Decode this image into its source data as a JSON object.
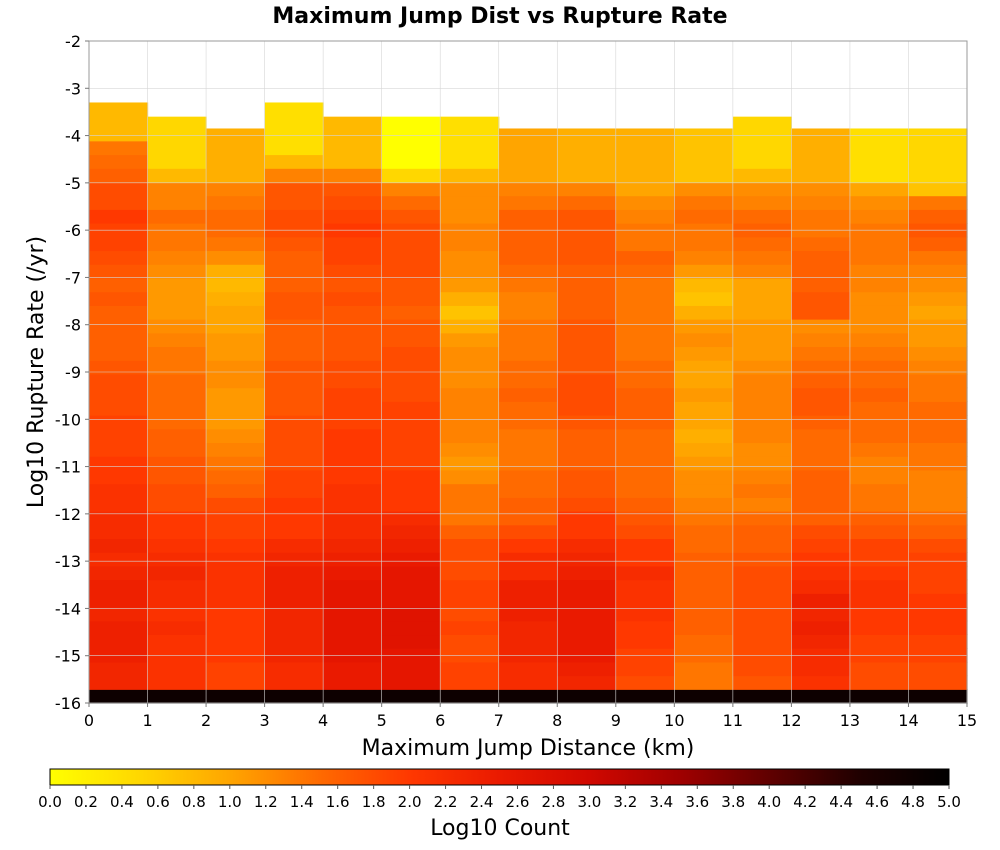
{
  "chart_data": {
    "type": "heatmap",
    "title": "Maximum Jump Dist vs Rupture Rate",
    "xlabel": "Maximum Jump Distance (km)",
    "ylabel": "Log10 Rupture Rate (/yr)",
    "colorbar_label": "Log10 Count",
    "xlim": [
      0,
      15
    ],
    "ylim": [
      -16,
      -2
    ],
    "x_bin_width": 1,
    "y_bin_width": 0.29,
    "y_bin_start": -16,
    "y_bin_count": 48,
    "x_ticks": [
      "0",
      "1",
      "2",
      "3",
      "4",
      "5",
      "6",
      "7",
      "8",
      "9",
      "10",
      "11",
      "12",
      "13",
      "14",
      "15"
    ],
    "y_ticks": [
      "-2",
      "-3",
      "-4",
      "-5",
      "-6",
      "-7",
      "-8",
      "-9",
      "-10",
      "-11",
      "-12",
      "-13",
      "-14",
      "-15",
      "-16"
    ],
    "colorbar_range": [
      0,
      5
    ],
    "colorbar_ticks": [
      "0.0",
      "0.2",
      "0.4",
      "0.6",
      "0.8",
      "1.0",
      "1.2",
      "1.4",
      "1.6",
      "1.8",
      "2.0",
      "2.2",
      "2.4",
      "2.6",
      "2.8",
      "3.0",
      "3.2",
      "3.4",
      "3.6",
      "3.8",
      "4.0",
      "4.2",
      "4.4",
      "4.6",
      "4.8",
      "5.0"
    ],
    "colormap": [
      "#ffff00",
      "#ffd700",
      "#ffa500",
      "#ff6a00",
      "#ff3800",
      "#ea1a00",
      "#d00800",
      "#a00000",
      "#600000",
      "#200000",
      "#000000"
    ],
    "grid": true,
    "columns": [
      {
        "x_range": [
          0,
          1
        ],
        "top": -3.3,
        "values": [
          4.8,
          2.3,
          2.3,
          2.4,
          2.4,
          2.4,
          2.3,
          2.4,
          2.4,
          2.3,
          2.2,
          2.3,
          2.2,
          2.2,
          2.1,
          2.1,
          2.0,
          2.0,
          1.9,
          1.9,
          1.9,
          1.8,
          1.8,
          1.8,
          1.7,
          1.6,
          1.6,
          1.6,
          1.6,
          1.7,
          1.6,
          1.7,
          1.8,
          1.9,
          1.9,
          2.0,
          1.8,
          1.8,
          1.6,
          1.5,
          1.4,
          0.8
        ]
      },
      {
        "x_range": [
          1,
          2
        ],
        "top": -3.6,
        "values": [
          4.8,
          2.1,
          2.1,
          2.1,
          2.1,
          2.2,
          2.1,
          2.2,
          2.2,
          2.3,
          2.2,
          2.1,
          2.0,
          2.0,
          1.8,
          1.8,
          1.7,
          1.7,
          1.6,
          1.6,
          1.5,
          1.5,
          1.5,
          1.5,
          1.4,
          1.4,
          1.3,
          1.2,
          1.1,
          1.1,
          1.1,
          1.2,
          1.3,
          1.4,
          1.4,
          1.5,
          1.3,
          1.3,
          0.8,
          0.5
        ]
      },
      {
        "x_range": [
          2,
          3
        ],
        "top": -3.85,
        "values": [
          4.8,
          1.9,
          1.9,
          2.0,
          2.0,
          2.0,
          2.0,
          2.1,
          2.1,
          2.1,
          2.1,
          2.0,
          1.9,
          1.9,
          1.8,
          1.6,
          1.5,
          1.4,
          1.3,
          1.2,
          1.1,
          1.1,
          1.1,
          1.2,
          1.2,
          1.1,
          1.1,
          1.0,
          1.0,
          0.9,
          0.8,
          0.9,
          1.2,
          1.4,
          1.5,
          1.5,
          1.4,
          1.3,
          0.9
        ]
      },
      {
        "x_range": [
          3,
          4
        ],
        "top": -3.3,
        "values": [
          4.8,
          2.2,
          2.2,
          2.3,
          2.3,
          2.3,
          2.3,
          2.4,
          2.4,
          2.4,
          2.3,
          2.2,
          2.0,
          2.0,
          2.0,
          1.9,
          1.9,
          1.8,
          1.8,
          1.8,
          1.8,
          1.7,
          1.7,
          1.7,
          1.7,
          1.6,
          1.6,
          1.6,
          1.7,
          1.7,
          1.6,
          1.6,
          1.6,
          1.7,
          1.8,
          1.8,
          1.7,
          1.7,
          1.3,
          0.8,
          0.4
        ]
      },
      {
        "x_range": [
          4,
          5
        ],
        "top": -3.6,
        "values": [
          4.8,
          2.5,
          2.5,
          2.6,
          2.6,
          2.6,
          2.6,
          2.6,
          2.6,
          2.5,
          2.4,
          2.3,
          2.2,
          2.2,
          2.1,
          2.1,
          2.0,
          2.0,
          2.0,
          2.0,
          1.9,
          1.9,
          1.9,
          1.8,
          1.8,
          1.7,
          1.7,
          1.7,
          1.7,
          1.8,
          1.7,
          1.8,
          1.9,
          1.9,
          2.0,
          1.9,
          1.8,
          1.7,
          1.3,
          0.8
        ]
      },
      {
        "x_range": [
          5,
          6
        ],
        "top": -3.6,
        "values": [
          4.8,
          2.6,
          2.6,
          2.6,
          2.7,
          2.7,
          2.7,
          2.6,
          2.6,
          2.6,
          2.5,
          2.4,
          2.3,
          2.2,
          2.0,
          2.0,
          2.0,
          1.9,
          1.9,
          1.9,
          1.9,
          1.9,
          1.8,
          1.8,
          1.8,
          1.8,
          1.7,
          1.7,
          1.6,
          1.7,
          1.7,
          1.8,
          1.8,
          1.8,
          1.8,
          1.7,
          1.5,
          1.3,
          0.5,
          0.0
        ]
      },
      {
        "x_range": [
          6,
          7
        ],
        "top": -3.6,
        "values": [
          4.8,
          1.9,
          1.9,
          1.8,
          1.8,
          1.9,
          1.8,
          1.9,
          1.9,
          1.8,
          1.8,
          1.8,
          1.6,
          1.4,
          1.4,
          1.4,
          1.2,
          1.1,
          1.2,
          1.3,
          1.3,
          1.3,
          1.3,
          1.2,
          1.2,
          1.2,
          1.1,
          0.9,
          0.7,
          0.9,
          1.1,
          1.2,
          1.2,
          1.3,
          1.3,
          1.2,
          1.2,
          1.2,
          0.8,
          0.4
        ]
      },
      {
        "x_range": [
          7,
          8
        ],
        "top": -3.85,
        "values": [
          4.8,
          2.2,
          2.2,
          2.3,
          2.3,
          2.3,
          2.4,
          2.4,
          2.4,
          2.2,
          2.2,
          2.0,
          1.8,
          1.6,
          1.6,
          1.5,
          1.5,
          1.4,
          1.4,
          1.4,
          1.5,
          1.5,
          1.6,
          1.5,
          1.5,
          1.4,
          1.4,
          1.4,
          1.3,
          1.3,
          1.4,
          1.5,
          1.6,
          1.6,
          1.6,
          1.6,
          1.4,
          1.3,
          1.0
        ]
      },
      {
        "x_range": [
          8,
          9
        ],
        "top": -3.85,
        "values": [
          4.8,
          2.3,
          2.4,
          2.5,
          2.5,
          2.5,
          2.5,
          2.5,
          2.5,
          2.4,
          2.3,
          2.2,
          2.0,
          2.0,
          1.8,
          1.7,
          1.7,
          1.6,
          1.6,
          1.6,
          1.7,
          1.8,
          1.8,
          1.8,
          1.7,
          1.7,
          1.7,
          1.7,
          1.6,
          1.6,
          1.6,
          1.6,
          1.7,
          1.7,
          1.7,
          1.7,
          1.5,
          1.3,
          0.9
        ]
      },
      {
        "x_range": [
          9,
          10
        ],
        "top": -3.85,
        "values": [
          4.8,
          1.8,
          1.9,
          1.9,
          2.0,
          2.0,
          2.1,
          2.1,
          2.1,
          2.2,
          2.0,
          2.0,
          1.8,
          1.7,
          1.6,
          1.5,
          1.5,
          1.5,
          1.5,
          1.5,
          1.6,
          1.6,
          1.6,
          1.5,
          1.5,
          1.4,
          1.4,
          1.4,
          1.4,
          1.4,
          1.4,
          1.5,
          1.6,
          1.4,
          1.4,
          1.3,
          1.2,
          1.0,
          0.9
        ]
      },
      {
        "x_range": [
          10,
          11
        ],
        "top": -3.85,
        "values": [
          4.8,
          1.4,
          1.4,
          1.5,
          1.5,
          1.6,
          1.6,
          1.6,
          1.6,
          1.6,
          1.6,
          1.5,
          1.5,
          1.4,
          1.3,
          1.2,
          1.2,
          1.1,
          1.0,
          0.9,
          1.0,
          1.0,
          1.1,
          1.0,
          1.0,
          1.1,
          1.2,
          1.1,
          0.9,
          0.7,
          0.8,
          1.1,
          1.3,
          1.4,
          1.4,
          1.5,
          1.4,
          1.2,
          0.7
        ]
      },
      {
        "x_range": [
          11,
          12
        ],
        "top": -3.6,
        "values": [
          4.8,
          1.7,
          1.8,
          1.8,
          1.8,
          1.8,
          1.8,
          1.8,
          1.8,
          1.8,
          1.7,
          1.6,
          1.6,
          1.5,
          1.3,
          1.4,
          1.3,
          1.2,
          1.2,
          1.3,
          1.3,
          1.3,
          1.3,
          1.3,
          1.2,
          1.1,
          1.1,
          1.1,
          1.0,
          1.0,
          1.0,
          1.3,
          1.4,
          1.5,
          1.6,
          1.5,
          1.3,
          1.2,
          0.8,
          0.5
        ]
      },
      {
        "x_range": [
          12,
          13
        ],
        "top": -3.85,
        "values": [
          4.8,
          2.1,
          2.2,
          2.2,
          2.3,
          2.4,
          2.3,
          2.4,
          2.2,
          2.1,
          2.0,
          1.9,
          1.8,
          1.6,
          1.6,
          1.6,
          1.6,
          1.5,
          1.5,
          1.5,
          1.6,
          1.7,
          1.7,
          1.6,
          1.5,
          1.4,
          1.3,
          1.2,
          1.7,
          1.7,
          1.6,
          1.6,
          1.6,
          1.5,
          1.4,
          1.4,
          1.3,
          1.2,
          0.9
        ]
      },
      {
        "x_range": [
          13,
          14
        ],
        "top": -3.85,
        "values": [
          4.8,
          1.8,
          1.8,
          1.9,
          1.9,
          2.0,
          2.0,
          2.1,
          2.1,
          2.0,
          1.9,
          1.9,
          1.7,
          1.6,
          1.4,
          1.4,
          1.3,
          1.3,
          1.4,
          1.5,
          1.5,
          1.5,
          1.6,
          1.5,
          1.5,
          1.4,
          1.3,
          1.2,
          1.2,
          1.2,
          1.3,
          1.3,
          1.4,
          1.4,
          1.4,
          1.3,
          1.2,
          1.0,
          0.4
        ]
      },
      {
        "x_range": [
          14,
          15
        ],
        "top": -3.85,
        "values": [
          4.8,
          1.8,
          1.8,
          1.9,
          1.9,
          2.0,
          2.0,
          2.0,
          1.9,
          1.9,
          1.9,
          1.8,
          1.6,
          1.5,
          1.3,
          1.3,
          1.3,
          1.4,
          1.4,
          1.5,
          1.5,
          1.5,
          1.4,
          1.4,
          1.3,
          1.2,
          1.1,
          1.1,
          1.0,
          1.1,
          1.2,
          1.3,
          1.4,
          1.6,
          1.7,
          1.6,
          1.4,
          0.7,
          0.5
        ]
      }
    ]
  }
}
